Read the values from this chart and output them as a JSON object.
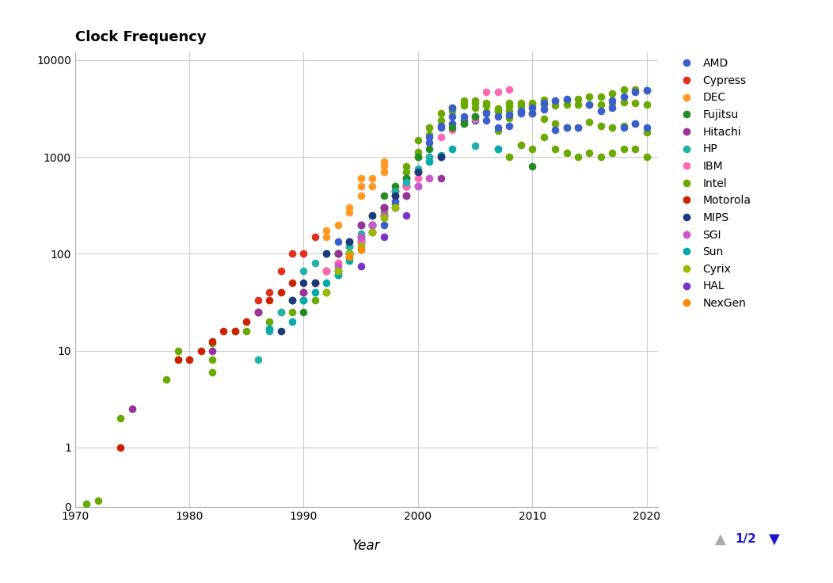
{
  "title": "Clock Frequency",
  "xlabel": "Year",
  "xlim": [
    1970,
    2021
  ],
  "ylim_top": 12000,
  "background": "#ffffff",
  "grid_color": "#cccccc",
  "legend_entries": [
    {
      "label": "AMD",
      "color": "#3a5fcd"
    },
    {
      "label": "Cypress",
      "color": "#e03020"
    },
    {
      "label": "DEC",
      "color": "#ff9922"
    },
    {
      "label": "Fujitsu",
      "color": "#228b22"
    },
    {
      "label": "Hitachi",
      "color": "#993399"
    },
    {
      "label": "HP",
      "color": "#20b2aa"
    },
    {
      "label": "IBM",
      "color": "#ff69b4"
    },
    {
      "label": "Intel",
      "color": "#6aaa00"
    },
    {
      "label": "Motorola",
      "color": "#cc2200"
    },
    {
      "label": "MIPS",
      "color": "#1a3a7a"
    },
    {
      "label": "SGI",
      "color": "#cc55cc"
    },
    {
      "label": "Sun",
      "color": "#00aaaa"
    },
    {
      "label": "Cyrix",
      "color": "#99bb00"
    },
    {
      "label": "HAL",
      "color": "#7733cc"
    },
    {
      "label": "NexGen",
      "color": "#ff8800"
    }
  ],
  "series": {
    "Intel": {
      "color": "#6aaa00",
      "points": [
        [
          1971,
          0.108
        ],
        [
          1972,
          0.2
        ],
        [
          1974,
          2.0
        ],
        [
          1978,
          5.0
        ],
        [
          1979,
          8.0
        ],
        [
          1979,
          10.0
        ],
        [
          1982,
          8.0
        ],
        [
          1982,
          12.0
        ],
        [
          1982,
          6.0
        ],
        [
          1984,
          16.0
        ],
        [
          1985,
          16.0
        ],
        [
          1986,
          25.0
        ],
        [
          1987,
          20.0
        ],
        [
          1988,
          25.0
        ],
        [
          1989,
          33.0
        ],
        [
          1989,
          25.0
        ],
        [
          1990,
          33.0
        ],
        [
          1991,
          33.0
        ],
        [
          1991,
          50.0
        ],
        [
          1992,
          66.0
        ],
        [
          1993,
          60.0
        ],
        [
          1993,
          66.0
        ],
        [
          1993,
          100.0
        ],
        [
          1994,
          90.0
        ],
        [
          1994,
          100.0
        ],
        [
          1994,
          120.0
        ],
        [
          1995,
          133.0
        ],
        [
          1995,
          150.0
        ],
        [
          1996,
          166.0
        ],
        [
          1996,
          200.0
        ],
        [
          1997,
          233.0
        ],
        [
          1997,
          266.0
        ],
        [
          1997,
          300.0
        ],
        [
          1998,
          333.0
        ],
        [
          1998,
          400.0
        ],
        [
          1998,
          450.0
        ],
        [
          1999,
          500.0
        ],
        [
          1999,
          600.0
        ],
        [
          1999,
          700.0
        ],
        [
          1999,
          800.0
        ],
        [
          2000,
          1000.0
        ],
        [
          2000,
          1130.0
        ],
        [
          2000,
          1500.0
        ],
        [
          2001,
          1700.0
        ],
        [
          2001,
          2000.0
        ],
        [
          2002,
          2400.0
        ],
        [
          2002,
          2800.0
        ],
        [
          2003,
          3000.0
        ],
        [
          2003,
          3200.0
        ],
        [
          2004,
          3400.0
        ],
        [
          2004,
          3600.0
        ],
        [
          2004,
          3800.0
        ],
        [
          2005,
          3200.0
        ],
        [
          2005,
          3600.0
        ],
        [
          2005,
          3800.0
        ],
        [
          2006,
          2930.0
        ],
        [
          2006,
          3400.0
        ],
        [
          2006,
          3600.0
        ],
        [
          2007,
          1860.0
        ],
        [
          2007,
          2930.0
        ],
        [
          2007,
          3000.0
        ],
        [
          2007,
          3160.0
        ],
        [
          2008,
          1000.0
        ],
        [
          2008,
          2530.0
        ],
        [
          2008,
          3000.0
        ],
        [
          2008,
          3333.0
        ],
        [
          2008,
          3600.0
        ],
        [
          2009,
          1333.0
        ],
        [
          2009,
          2930.0
        ],
        [
          2009,
          3333.0
        ],
        [
          2009,
          3600.0
        ],
        [
          2010,
          1200.0
        ],
        [
          2010,
          2800.0
        ],
        [
          2010,
          3460.0
        ],
        [
          2010,
          3600.0
        ],
        [
          2011,
          1600.0
        ],
        [
          2011,
          2500.0
        ],
        [
          2011,
          3500.0
        ],
        [
          2011,
          3900.0
        ],
        [
          2012,
          1200.0
        ],
        [
          2012,
          2200.0
        ],
        [
          2012,
          3400.0
        ],
        [
          2012,
          3800.0
        ],
        [
          2013,
          1100.0
        ],
        [
          2013,
          2000.0
        ],
        [
          2013,
          3500.0
        ],
        [
          2013,
          3900.0
        ],
        [
          2014,
          1000.0
        ],
        [
          2014,
          2000.0
        ],
        [
          2014,
          3500.0
        ],
        [
          2014,
          4000.0
        ],
        [
          2015,
          1100.0
        ],
        [
          2015,
          2300.0
        ],
        [
          2015,
          3500.0
        ],
        [
          2015,
          4200.0
        ],
        [
          2016,
          1000.0
        ],
        [
          2016,
          2100.0
        ],
        [
          2016,
          3500.0
        ],
        [
          2016,
          4200.0
        ],
        [
          2017,
          1100.0
        ],
        [
          2017,
          2000.0
        ],
        [
          2017,
          3600.0
        ],
        [
          2017,
          4500.0
        ],
        [
          2018,
          1200.0
        ],
        [
          2018,
          2100.0
        ],
        [
          2018,
          3700.0
        ],
        [
          2018,
          5000.0
        ],
        [
          2019,
          1200.0
        ],
        [
          2019,
          2200.0
        ],
        [
          2019,
          3600.0
        ],
        [
          2019,
          5000.0
        ],
        [
          2020,
          1000.0
        ],
        [
          2020,
          1800.0
        ],
        [
          2020,
          3500.0
        ],
        [
          2020,
          4900.0
        ]
      ]
    },
    "AMD": {
      "color": "#3a5fcd",
      "points": [
        [
          1993,
          133.0
        ],
        [
          1994,
          133.0
        ],
        [
          1995,
          133.0
        ],
        [
          1996,
          166.0
        ],
        [
          1997,
          200.0
        ],
        [
          1998,
          350.0
        ],
        [
          1999,
          500.0
        ],
        [
          1999,
          600.0
        ],
        [
          2000,
          700.0
        ],
        [
          2001,
          1400.0
        ],
        [
          2001,
          1600.0
        ],
        [
          2002,
          2000.0
        ],
        [
          2002,
          2100.0
        ],
        [
          2003,
          2200.0
        ],
        [
          2003,
          2600.0
        ],
        [
          2003,
          3200.0
        ],
        [
          2004,
          2400.0
        ],
        [
          2004,
          2600.0
        ],
        [
          2005,
          2400.0
        ],
        [
          2005,
          2600.0
        ],
        [
          2006,
          2400.0
        ],
        [
          2006,
          2800.0
        ],
        [
          2007,
          2000.0
        ],
        [
          2007,
          2600.0
        ],
        [
          2008,
          2100.0
        ],
        [
          2008,
          2700.0
        ],
        [
          2009,
          2800.0
        ],
        [
          2009,
          3000.0
        ],
        [
          2010,
          2800.0
        ],
        [
          2010,
          3200.0
        ],
        [
          2011,
          3100.0
        ],
        [
          2011,
          3600.0
        ],
        [
          2012,
          1900.0
        ],
        [
          2012,
          3800.0
        ],
        [
          2013,
          2000.0
        ],
        [
          2013,
          4000.0
        ],
        [
          2014,
          2000.0
        ],
        [
          2015,
          3500.0
        ],
        [
          2016,
          3000.0
        ],
        [
          2017,
          3200.0
        ],
        [
          2017,
          3800.0
        ],
        [
          2018,
          2000.0
        ],
        [
          2018,
          4200.0
        ],
        [
          2019,
          2200.0
        ],
        [
          2019,
          4700.0
        ],
        [
          2020,
          2000.0
        ],
        [
          2020,
          4900.0
        ]
      ]
    },
    "Motorola": {
      "color": "#cc2200",
      "points": [
        [
          1974,
          1.0
        ],
        [
          1979,
          8.0
        ],
        [
          1980,
          8.0
        ],
        [
          1981,
          10.0
        ],
        [
          1982,
          12.5
        ],
        [
          1983,
          16.0
        ],
        [
          1984,
          16.0
        ],
        [
          1985,
          20.0
        ],
        [
          1986,
          25.0
        ],
        [
          1987,
          33.0
        ],
        [
          1988,
          40.0
        ],
        [
          1989,
          50.0
        ],
        [
          1990,
          40.0
        ],
        [
          1991,
          50.0
        ],
        [
          1992,
          66.0
        ],
        [
          1993,
          80.0
        ],
        [
          1994,
          100.0
        ],
        [
          1995,
          133.0
        ],
        [
          1996,
          200.0
        ],
        [
          1997,
          250.0
        ],
        [
          1998,
          450.0
        ],
        [
          1999,
          500.0
        ],
        [
          2000,
          700.0
        ]
      ]
    },
    "DEC": {
      "color": "#ff9922",
      "points": [
        [
          1992,
          150.0
        ],
        [
          1992,
          175.0
        ],
        [
          1993,
          200.0
        ],
        [
          1994,
          266.0
        ],
        [
          1994,
          300.0
        ],
        [
          1995,
          400.0
        ],
        [
          1995,
          500.0
        ],
        [
          1995,
          600.0
        ],
        [
          1996,
          500.0
        ],
        [
          1996,
          600.0
        ],
        [
          1997,
          700.0
        ],
        [
          1997,
          800.0
        ],
        [
          1997,
          900.0
        ]
      ]
    },
    "IBM": {
      "color": "#ff69b4",
      "points": [
        [
          1991,
          50.0
        ],
        [
          1992,
          66.0
        ],
        [
          1993,
          80.0
        ],
        [
          1994,
          100.0
        ],
        [
          1995,
          133.0
        ],
        [
          1996,
          200.0
        ],
        [
          1997,
          300.0
        ],
        [
          1998,
          400.0
        ],
        [
          1999,
          500.0
        ],
        [
          2000,
          600.0
        ],
        [
          2001,
          1000.0
        ],
        [
          2002,
          1600.0
        ],
        [
          2003,
          1900.0
        ],
        [
          2004,
          2200.0
        ],
        [
          2005,
          2500.0
        ],
        [
          2006,
          4700.0
        ],
        [
          2007,
          4700.0
        ],
        [
          2008,
          5000.0
        ]
      ]
    },
    "Fujitsu": {
      "color": "#228b22",
      "points": [
        [
          1990,
          25.0
        ],
        [
          1992,
          40.0
        ],
        [
          1993,
          66.0
        ],
        [
          1994,
          100.0
        ],
        [
          1995,
          150.0
        ],
        [
          1996,
          250.0
        ],
        [
          1997,
          400.0
        ],
        [
          1998,
          500.0
        ],
        [
          1999,
          600.0
        ],
        [
          2000,
          1000.0
        ],
        [
          2001,
          1200.0
        ],
        [
          2003,
          2000.0
        ],
        [
          2004,
          2200.0
        ],
        [
          2005,
          2600.0
        ],
        [
          2010,
          800.0
        ]
      ]
    },
    "HP": {
      "color": "#20b2aa",
      "points": [
        [
          1986,
          8.0
        ],
        [
          1987,
          16.0
        ],
        [
          1988,
          25.0
        ],
        [
          1989,
          33.0
        ],
        [
          1990,
          66.0
        ],
        [
          1991,
          80.0
        ],
        [
          1992,
          100.0
        ],
        [
          1993,
          100.0
        ],
        [
          1994,
          120.0
        ],
        [
          1995,
          160.0
        ],
        [
          1996,
          200.0
        ],
        [
          1997,
          300.0
        ],
        [
          1998,
          440.0
        ],
        [
          1999,
          550.0
        ],
        [
          2000,
          750.0
        ],
        [
          2001,
          1000.0
        ],
        [
          2002,
          1000.0
        ],
        [
          2005,
          1300.0
        ],
        [
          2007,
          1200.0
        ]
      ]
    },
    "Sun": {
      "color": "#00aaaa",
      "points": [
        [
          1987,
          16.67
        ],
        [
          1989,
          20.0
        ],
        [
          1990,
          33.0
        ],
        [
          1991,
          40.0
        ],
        [
          1992,
          50.0
        ],
        [
          1993,
          60.0
        ],
        [
          1994,
          85.0
        ],
        [
          1995,
          150.0
        ],
        [
          1996,
          200.0
        ],
        [
          1997,
          250.0
        ],
        [
          1998,
          300.0
        ],
        [
          1999,
          400.0
        ],
        [
          2000,
          500.0
        ],
        [
          2001,
          900.0
        ],
        [
          2002,
          1050.0
        ],
        [
          2003,
          1200.0
        ],
        [
          2007,
          1200.0
        ]
      ]
    },
    "MIPS": {
      "color": "#1a3a7a",
      "points": [
        [
          1988,
          16.0
        ],
        [
          1989,
          33.0
        ],
        [
          1990,
          50.0
        ],
        [
          1991,
          50.0
        ],
        [
          1992,
          100.0
        ],
        [
          1993,
          100.0
        ],
        [
          1994,
          133.0
        ],
        [
          1995,
          200.0
        ],
        [
          1996,
          250.0
        ],
        [
          1997,
          300.0
        ],
        [
          1998,
          400.0
        ],
        [
          2000,
          700.0
        ],
        [
          2002,
          1000.0
        ]
      ]
    },
    "SGI": {
      "color": "#cc55cc",
      "points": [
        [
          1993,
          75.0
        ],
        [
          1994,
          100.0
        ],
        [
          1995,
          150.0
        ],
        [
          1996,
          200.0
        ],
        [
          1997,
          250.0
        ],
        [
          1998,
          300.0
        ],
        [
          1999,
          400.0
        ],
        [
          2000,
          500.0
        ],
        [
          2001,
          600.0
        ]
      ]
    },
    "Hitachi": {
      "color": "#993399",
      "points": [
        [
          1975,
          2.5
        ],
        [
          1982,
          10.0
        ],
        [
          1986,
          25.0
        ],
        [
          1990,
          40.0
        ],
        [
          1993,
          100.0
        ],
        [
          1995,
          200.0
        ],
        [
          1997,
          300.0
        ],
        [
          1999,
          400.0
        ],
        [
          2002,
          600.0
        ]
      ]
    },
    "Cypress": {
      "color": "#e03020",
      "points": [
        [
          1986,
          33.0
        ],
        [
          1987,
          40.0
        ],
        [
          1988,
          66.0
        ],
        [
          1989,
          100.0
        ],
        [
          1990,
          100.0
        ],
        [
          1991,
          150.0
        ]
      ]
    },
    "Cyrix": {
      "color": "#99bb00",
      "points": [
        [
          1992,
          40.0
        ],
        [
          1993,
          66.0
        ],
        [
          1994,
          100.0
        ],
        [
          1995,
          120.0
        ],
        [
          1996,
          166.0
        ],
        [
          1997,
          233.0
        ],
        [
          1998,
          300.0
        ]
      ]
    },
    "HAL": {
      "color": "#7733cc",
      "points": [
        [
          1995,
          75.0
        ],
        [
          1997,
          150.0
        ],
        [
          1999,
          250.0
        ]
      ]
    },
    "NexGen": {
      "color": "#ff8800",
      "points": [
        [
          1994,
          93.0
        ],
        [
          1995,
          111.0
        ]
      ]
    }
  },
  "marker_size": 48,
  "linthresh": 0.3,
  "linscale": 0.08,
  "xticks": [
    1970,
    1980,
    1990,
    2000,
    2010,
    2020
  ],
  "yticks": [
    0,
    1,
    10,
    100,
    1000,
    10000
  ],
  "ytick_labels": [
    "0",
    "1",
    "10",
    "100",
    "1000",
    "10000"
  ]
}
